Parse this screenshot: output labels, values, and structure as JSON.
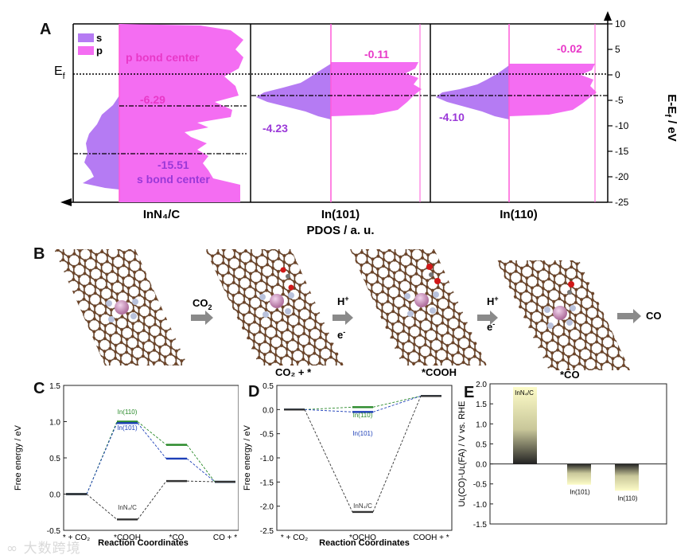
{
  "panels": {
    "A": {
      "label": "A",
      "legend": [
        "s",
        "p"
      ],
      "colors": {
        "s": "#b57bf3",
        "p": "#f46df2"
      },
      "ef_label": "E",
      "ef_sub": "f",
      "xlabel": "PDOS / a. u.",
      "ylabel": "E-E",
      "ylabel_sub": "f",
      "ylabel_unit": " / eV",
      "yticks": [
        "10",
        "5",
        "0",
        "-5",
        "-10",
        "-15",
        "-20",
        "-25"
      ],
      "subpanels": [
        {
          "name": "InN₄/C",
          "p_center": "-6.29",
          "s_center": "-15.51",
          "p_label": "p bond center",
          "s_label": "s bond center"
        },
        {
          "name": "In(101)",
          "p_center": "-0.11",
          "s_center": "-4.23"
        },
        {
          "name": "In(110)",
          "p_center": "-0.02",
          "s_center": "-4.10"
        }
      ]
    },
    "B": {
      "label": "B",
      "step1_top": "CO",
      "step1_sub": "2",
      "step2_top": "H",
      "step2_top_sup": "+",
      "step2_bottom": "e",
      "step2_bottom_sup": "-",
      "step3_top": "H",
      "step3_top_sup": "+",
      "step3_bottom": "e",
      "step3_bottom_sup": "-",
      "product": "CO",
      "captions": [
        "CO₂ + *",
        "*COOH",
        "*CO"
      ]
    },
    "C": {
      "label": "C",
      "ylabel": "Free energy / eV",
      "xlabel": "Reaction Coordinates",
      "yticks": [
        "1.5",
        "1.0",
        "0.5",
        "0.0",
        "-0.5"
      ],
      "xticks": [
        "* + CO₂",
        "*COOH",
        "*CO",
        "CO + *"
      ],
      "annotations": [
        "In(110)",
        "In(101)",
        "InN₄/C"
      ]
    },
    "D": {
      "label": "D",
      "ylabel": "Free energy / eV",
      "xlabel": "Reaction Coordinates",
      "yticks": [
        "0.5",
        "0.0",
        "-0.5",
        "-1.0",
        "-1.5",
        "-2.0",
        "-2.5"
      ],
      "xticks": [
        "* + CO₂",
        "*OCHO",
        "COOH + *"
      ],
      "annotations": [
        "In(110)",
        "In(101)",
        "InN₄/C"
      ]
    },
    "E": {
      "label": "E",
      "ylabel": "Uʟ(CO)-Uʟ(FA) / V vs. RHE",
      "yticks": [
        "2.0",
        "1.5",
        "1.0",
        "0.5",
        "0.0",
        "-0.5",
        "-1.0",
        "-1.5"
      ],
      "bars": [
        "InN₄/C",
        "In(101)",
        "In(110)"
      ]
    }
  },
  "watermark": "∞ 大数跨境",
  "chart_data": [
    {
      "type": "line",
      "title": "",
      "xlabel": "Reaction Coordinates",
      "ylabel": "Free energy / eV",
      "categories": [
        "* + CO₂",
        "*COOH",
        "*CO",
        "CO + *"
      ],
      "ylim": [
        -0.5,
        1.5
      ],
      "series": [
        {
          "name": "In(110)",
          "color": "#2a8a2a",
          "values": [
            0.0,
            1.0,
            0.68,
            0.17
          ]
        },
        {
          "name": "In(101)",
          "color": "#1d3fb8",
          "values": [
            0.0,
            0.98,
            0.49,
            0.17
          ]
        },
        {
          "name": "InN₄/C",
          "color": "#333333",
          "values": [
            0.0,
            -0.35,
            0.18,
            0.17
          ]
        }
      ]
    },
    {
      "type": "line",
      "title": "",
      "xlabel": "Reaction Coordinates",
      "ylabel": "Free energy / eV",
      "categories": [
        "* + CO₂",
        "*OCHO",
        "COOH + *"
      ],
      "ylim": [
        -2.5,
        0.5
      ],
      "series": [
        {
          "name": "In(110)",
          "color": "#2a8a2a",
          "values": [
            0.0,
            0.05,
            0.28
          ]
        },
        {
          "name": "In(101)",
          "color": "#1d3fb8",
          "values": [
            0.0,
            -0.05,
            0.28
          ]
        },
        {
          "name": "InN₄/C",
          "color": "#333333",
          "values": [
            0.0,
            -2.12,
            0.28
          ]
        }
      ]
    },
    {
      "type": "bar",
      "title": "",
      "ylabel": "Uʟ(CO)-Uʟ(FA) / V vs. RHE",
      "categories": [
        "InN₄/C",
        "In(101)",
        "In(110)"
      ],
      "values": [
        1.92,
        -0.52,
        -0.67
      ],
      "ylim": [
        -1.5,
        2.0
      ]
    }
  ]
}
